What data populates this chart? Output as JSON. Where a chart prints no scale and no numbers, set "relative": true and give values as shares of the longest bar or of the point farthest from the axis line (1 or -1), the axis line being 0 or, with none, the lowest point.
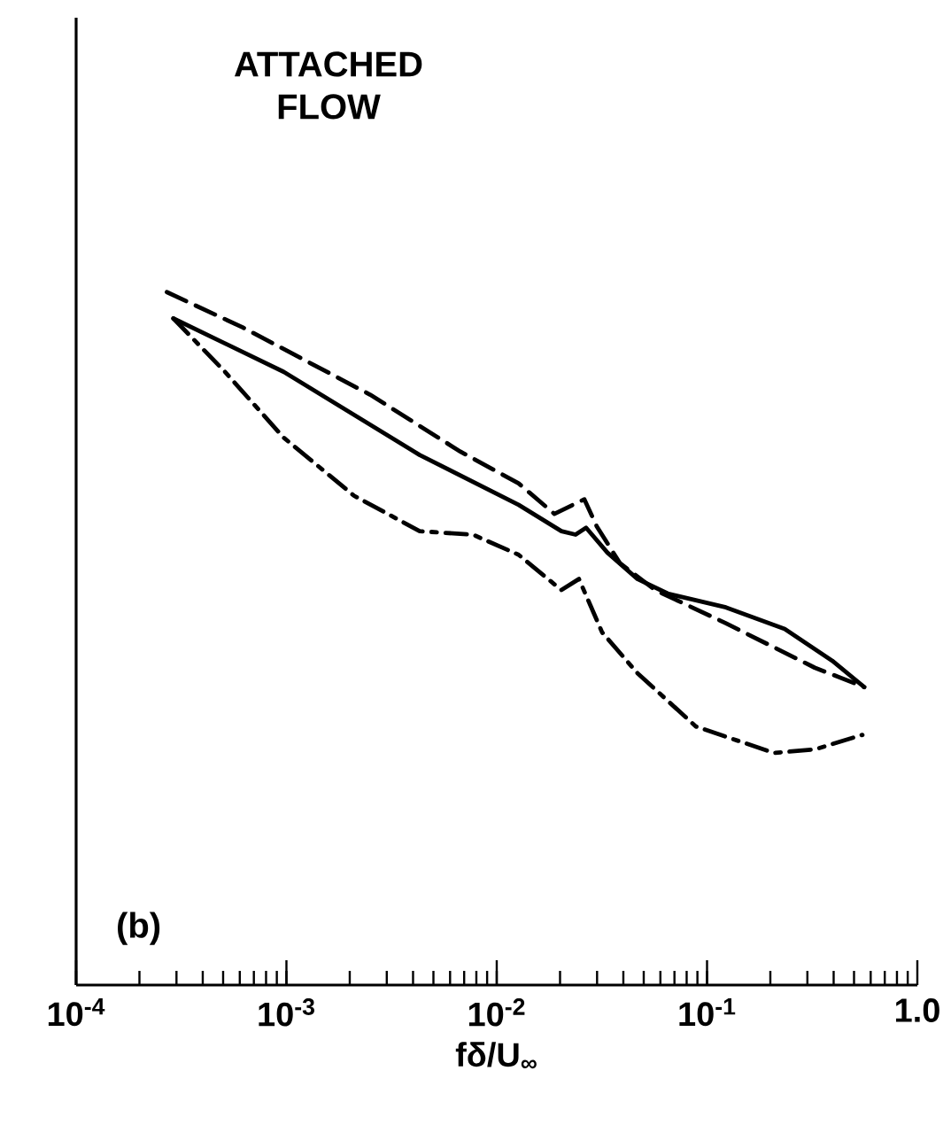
{
  "chart_data": {
    "type": "line",
    "relative": true,
    "log": "x",
    "xlabel": "fδ/U$_{∞}$",
    "xlim": [
      0.0001,
      1
    ],
    "xticks": [
      {
        "value": 0.0001,
        "label": "10$^{-4}$"
      },
      {
        "value": 0.001,
        "label": "10$^{-3}$"
      },
      {
        "value": 0.01,
        "label": "10$^{-2}$"
      },
      {
        "value": 0.1,
        "label": "10$^{-1}$"
      },
      {
        "value": 1,
        "label": "1.0"
      }
    ],
    "annotations": [
      "ATTACHED FLOW",
      "(b)"
    ],
    "series": [
      {
        "color": "#000000",
        "line_style": "solid",
        "x": [
          0.00029,
          0.00097,
          0.0043,
          0.0127,
          0.0203,
          0.0237,
          0.0266,
          0.0336,
          0.0467,
          0.065,
          0.123,
          0.234,
          0.394,
          0.559
        ],
        "values": [
          0.962,
          0.885,
          0.765,
          0.693,
          0.655,
          0.65,
          0.66,
          0.624,
          0.586,
          0.565,
          0.545,
          0.514,
          0.468,
          0.43
        ]
      },
      {
        "color": "#000000",
        "line_style": "dashed",
        "x": [
          0.00027,
          0.00062,
          0.0025,
          0.0067,
          0.0127,
          0.0188,
          0.0261,
          0.0299,
          0.0385,
          0.0567,
          0.123,
          0.325,
          0.559
        ],
        "values": [
          1.0,
          0.949,
          0.852,
          0.77,
          0.724,
          0.68,
          0.701,
          0.662,
          0.609,
          0.57,
          0.522,
          0.458,
          0.43
        ]
      },
      {
        "color": "#000000",
        "line_style": "dashdot",
        "x": [
          0.00029,
          0.00051,
          0.00097,
          0.0021,
          0.0043,
          0.0077,
          0.0127,
          0.0203,
          0.0246,
          0.0317,
          0.0467,
          0.0886,
          0.208,
          0.325,
          0.548
        ],
        "values": [
          0.962,
          0.885,
          0.79,
          0.706,
          0.655,
          0.65,
          0.621,
          0.57,
          0.586,
          0.509,
          0.45,
          0.373,
          0.335,
          0.34,
          0.361
        ]
      }
    ]
  }
}
